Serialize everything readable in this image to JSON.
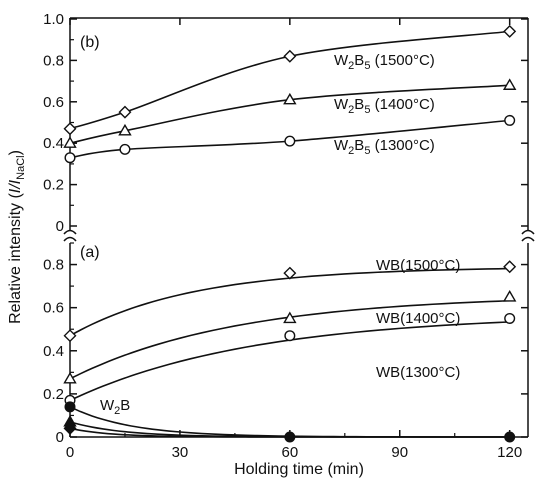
{
  "chart_data": [
    {
      "panel": "(b)",
      "type": "line",
      "xlabel": "Holding time (min)",
      "ylabel": "Relative intensity (I/I_NaCl)",
      "xlim": [
        0,
        125
      ],
      "ylim": [
        0,
        1.0
      ],
      "x_ticks": [
        0,
        30,
        60,
        90,
        120
      ],
      "y_ticks": [
        "0",
        "0.2",
        "0.4",
        "0.6",
        "0.8",
        "1.0"
      ],
      "series": [
        {
          "name": "W2B5 (1500°C)",
          "marker": "diamond",
          "x": [
            0,
            15,
            60,
            120
          ],
          "y": [
            0.47,
            0.55,
            0.82,
            0.94
          ]
        },
        {
          "name": "W2B5 (1400°C)",
          "marker": "triangle",
          "x": [
            0,
            15,
            60,
            120
          ],
          "y": [
            0.4,
            0.46,
            0.61,
            0.68
          ]
        },
        {
          "name": "W2B5 (1300°C)",
          "marker": "circle",
          "x": [
            0,
            15,
            60,
            120
          ],
          "y": [
            0.33,
            0.37,
            0.41,
            0.51
          ]
        }
      ]
    },
    {
      "panel": "(a)",
      "type": "line",
      "xlabel": "Holding time (min)",
      "ylabel": "Relative intensity (I/I_NaCl)",
      "xlim": [
        0,
        125
      ],
      "ylim": [
        0,
        0.9
      ],
      "x_ticks": [
        0,
        30,
        60,
        90,
        120
      ],
      "y_ticks": [
        "0",
        "0.2",
        "0.4",
        "0.6",
        "0.8"
      ],
      "series": [
        {
          "name": "WB(1500°C)",
          "marker": "diamond",
          "x": [
            0,
            60,
            120
          ],
          "y": [
            0.47,
            0.76,
            0.79
          ]
        },
        {
          "name": "WB(1400°C)",
          "marker": "triangle",
          "x": [
            0,
            60,
            120
          ],
          "y": [
            0.27,
            0.55,
            0.65
          ]
        },
        {
          "name": "WB(1300°C)",
          "marker": "circle",
          "x": [
            0,
            60,
            120
          ],
          "y": [
            0.17,
            0.47,
            0.55
          ]
        },
        {
          "name": "W2B",
          "marker": "mixed",
          "x": [
            0,
            60,
            120
          ],
          "y": [
            0.14,
            0,
            0
          ]
        }
      ]
    }
  ],
  "figure": {
    "xlabel": "Holding time (min)",
    "ylabel_main": "Relative intensity (",
    "ylabel_italic": "I/I",
    "ylabel_sub": "NaCl",
    "ylabel_close": ")",
    "panel_b_label": "(b)",
    "panel_a_label": "(a)",
    "labels_b": [
      {
        "main": "W",
        "sub": "2",
        "mid": "B",
        "sub2": "5",
        "tail": " (1500°C)"
      },
      {
        "main": "W",
        "sub": "2",
        "mid": "B",
        "sub2": "5",
        "tail": " (1400°C)"
      },
      {
        "main": "W",
        "sub": "2",
        "mid": "B",
        "sub2": "5",
        "tail": " (1300°C)"
      }
    ],
    "labels_a": [
      "WB(1500°C)",
      "WB(1400°C)",
      "WB(1300°C)"
    ],
    "label_w2b": {
      "main": "W",
      "sub": "2",
      "tail": "B"
    }
  }
}
